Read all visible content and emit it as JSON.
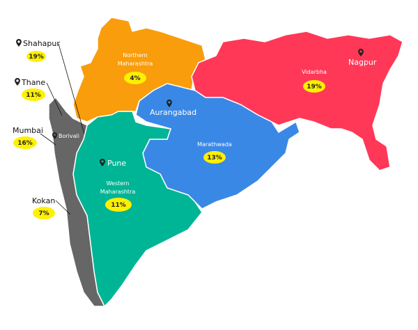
{
  "colors": {
    "northern": "#F99D0C",
    "vidarbha": "#FF3858",
    "marathwada": "#3A88E6",
    "western": "#00B595",
    "kokan": "#666666",
    "badge": "#FFF000",
    "border": "#ffffff"
  },
  "regions": [
    {
      "name": "Northern Maharashtra",
      "line1": "Northern",
      "line2": "Maharashtra",
      "percent": "4%",
      "city": ""
    },
    {
      "name": "Vidarbha",
      "line1": "Vidarbha",
      "percent": "19%",
      "city": "Nagpur"
    },
    {
      "name": "Marathwada",
      "line1": "Marathwada",
      "percent": "13%",
      "city": "Aurangabad"
    },
    {
      "name": "Western Maharashtra",
      "line1": "Western",
      "line2": "Maharashtra",
      "percent": "11%",
      "city": "Pune"
    }
  ],
  "callouts": [
    {
      "label": "Shahapur",
      "percent": "19%"
    },
    {
      "label": "Thane",
      "percent": "11%"
    },
    {
      "label": "Mumbai",
      "percent": "16%"
    },
    {
      "label": "Kokan",
      "percent": "7%"
    }
  ],
  "borivali": "Borivali",
  "icons": {
    "pin": "map-pin-icon"
  }
}
